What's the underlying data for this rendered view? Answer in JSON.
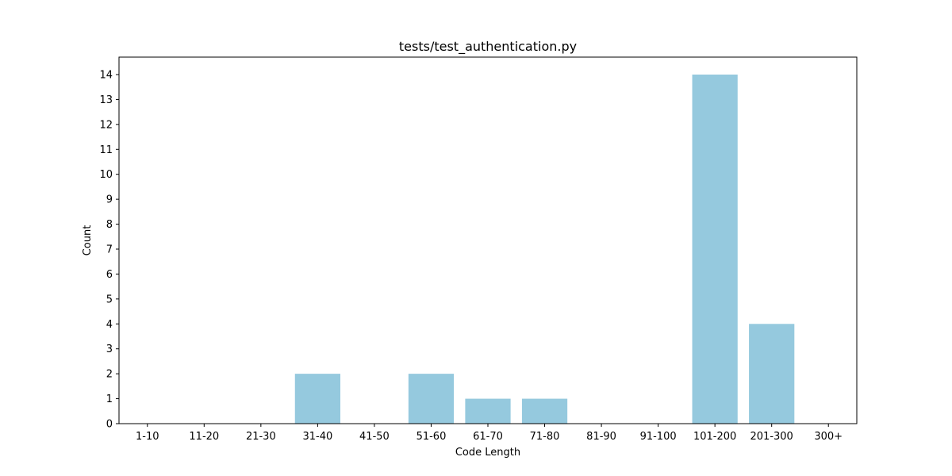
{
  "chart_data": {
    "type": "bar",
    "title": "tests/test_authentication.py",
    "xlabel": "Code Length",
    "ylabel": "Count",
    "categories": [
      "1-10",
      "11-20",
      "21-30",
      "31-40",
      "41-50",
      "51-60",
      "61-70",
      "71-80",
      "81-90",
      "91-100",
      "101-200",
      "201-300",
      "300+"
    ],
    "values": [
      0,
      0,
      0,
      2,
      0,
      2,
      1,
      1,
      0,
      0,
      14,
      4,
      0
    ],
    "ylim": [
      0,
      14.7
    ],
    "yticks": [
      0,
      1,
      2,
      3,
      4,
      5,
      6,
      7,
      8,
      9,
      10,
      11,
      12,
      13,
      14
    ],
    "grid": false,
    "bar_color": "#95c9de"
  }
}
